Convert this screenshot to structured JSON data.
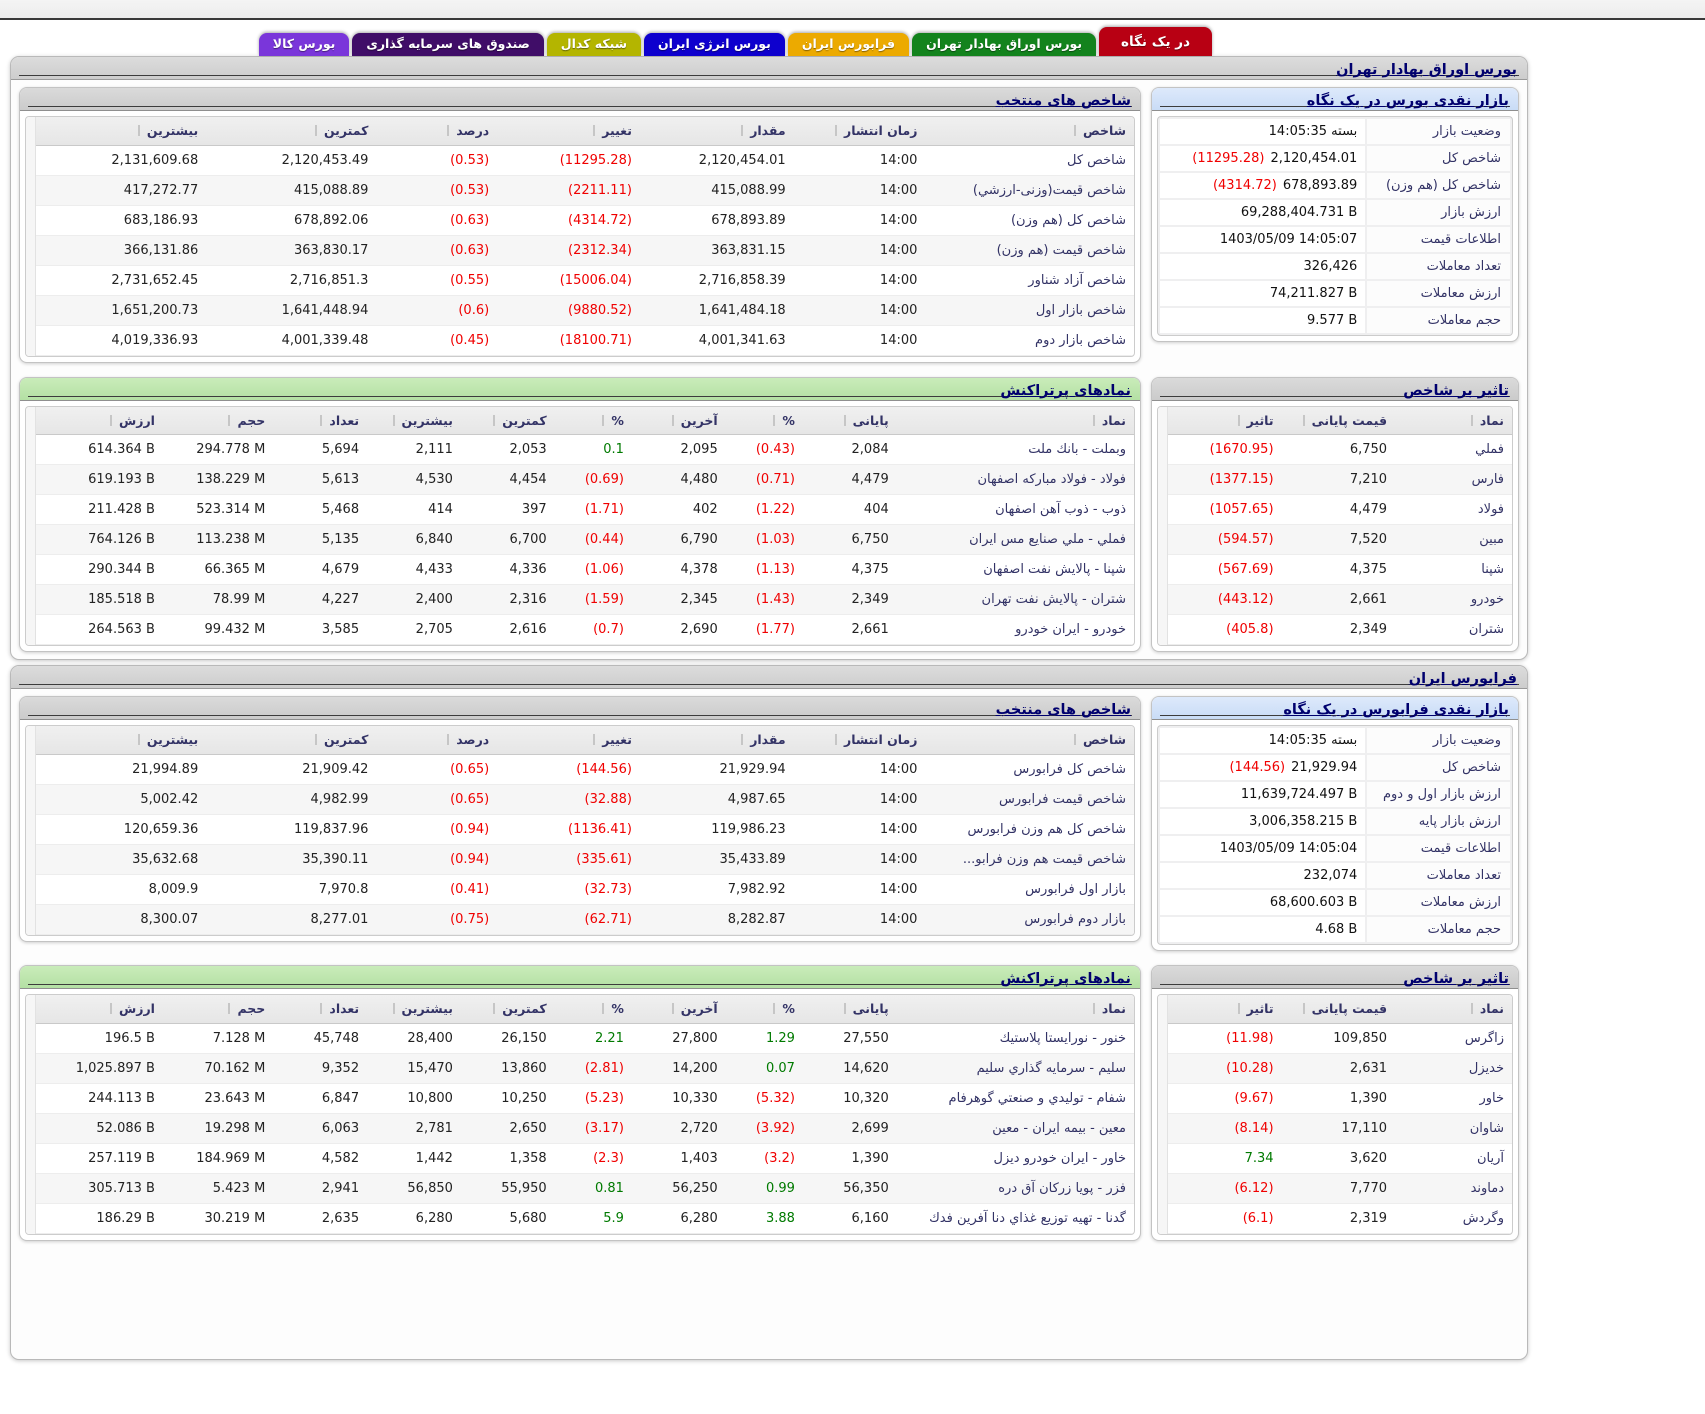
{
  "page": {
    "tabs": [
      {
        "label": "در یک نگاه",
        "slug": "at-a-glance",
        "color": "#b80013",
        "active": true
      },
      {
        "label": "بورس اوراق بهادار تهران",
        "slug": "tehran-stock-exchange",
        "color": "#13831d",
        "active": false
      },
      {
        "label": "فرابورس ایران",
        "slug": "iran-farabourse",
        "color": "#ecaa00",
        "active": false
      },
      {
        "label": "بورس انرژی ایران",
        "slug": "iran-energy-exchange",
        "color": "#0e00ce",
        "active": false
      },
      {
        "label": "شبکه کدال",
        "slug": "codal-network",
        "color": "#b4b500",
        "active": false
      },
      {
        "label": "صندوق های سرمایه گذاری",
        "slug": "investment-funds",
        "color": "#400d68",
        "active": false
      },
      {
        "label": "بورس کالا",
        "slug": "commodity-exchange",
        "color": "#7a36da",
        "active": false
      }
    ],
    "sections": [
      {
        "title": "بورس اوراق بهادار تهران",
        "summary": {
          "title": "بازار نقدی بورس در یک نگاه",
          "rows": [
            {
              "label": "وضعیت بازار",
              "value": "بسته 14:05:35"
            },
            {
              "label": "شاخص کل",
              "value": "2,120,454.01",
              "change": "(11295.28)"
            },
            {
              "label": "شاخص کل (هم وزن)",
              "value": "678,893.89",
              "change": "(4314.72)"
            },
            {
              "label": "ارزش بازار",
              "value": "69,288,404.731 B"
            },
            {
              "label": "اطلاعات قیمت",
              "value": "1403/05/09 14:05:07"
            },
            {
              "label": "تعداد معاملات",
              "value": "326,426"
            },
            {
              "label": "ارزش معاملات",
              "value": "74,211.827 B"
            },
            {
              "label": "حجم معاملات",
              "value": "9.577 B"
            }
          ]
        },
        "indices": {
          "title": "شاخص های منتخب",
          "headers": [
            "شاخص",
            "زمان انتشار",
            "مقدار",
            "تغییر",
            "درصد",
            "کمترین",
            "بیشترین"
          ],
          "rows": [
            [
              "شاخص کل",
              "14:00",
              "2,120,454.01",
              "(11295.28)",
              "(0.53)",
              "2,120,453.49",
              "2,131,609.68"
            ],
            [
              "شاخص قیمت(وزنی-ارزشي)",
              "14:00",
              "415,088.99",
              "(2211.11)",
              "(0.53)",
              "415,088.89",
              "417,272.77"
            ],
            [
              "شاخص کل (هم وزن)",
              "14:00",
              "678,893.89",
              "(4314.72)",
              "(0.63)",
              "678,892.06",
              "683,186.93"
            ],
            [
              "شاخص قیمت (هم وزن)",
              "14:00",
              "363,831.15",
              "(2312.34)",
              "(0.63)",
              "363,830.17",
              "366,131.86"
            ],
            [
              "شاخص آزاد شناور",
              "14:00",
              "2,716,858.39",
              "(15006.04)",
              "(0.55)",
              "2,716,851.3",
              "2,731,652.45"
            ],
            [
              "شاخص بازار اول",
              "14:00",
              "1,641,484.18",
              "(9880.52)",
              "(0.6)",
              "1,641,448.94",
              "1,651,200.73"
            ],
            [
              "شاخص بازار دوم",
              "14:00",
              "4,001,341.63",
              "(18100.71)",
              "(0.45)",
              "4,001,339.48",
              "4,019,336.93"
            ]
          ]
        },
        "impact": {
          "title": "تاثیر بر شاخص",
          "headers": [
            "نماد",
            "قیمت پایانی",
            "تاثیر"
          ],
          "rows": [
            [
              "فملي",
              "6,750",
              "(1670.95)"
            ],
            [
              "فارس",
              "7,210",
              "(1377.15)"
            ],
            [
              "فولاد",
              "4,479",
              "(1057.65)"
            ],
            [
              "مبین",
              "7,520",
              "(594.57)"
            ],
            [
              "شپنا",
              "4,375",
              "(567.69)"
            ],
            [
              "خودرو",
              "2,661",
              "(443.12)"
            ],
            [
              "شتران",
              "2,349",
              "(405.8)"
            ]
          ]
        },
        "trades": {
          "title": "نمادهای پرتراکنش",
          "headers": [
            "نماد",
            "پایانی",
            "%",
            "آخرین",
            "%",
            "کمترین",
            "بیشترین",
            "تعداد",
            "حجم",
            "ارزش"
          ],
          "rows": [
            [
              "وبملت - بانك ملت",
              "2,084",
              "(0.43)",
              "2,095",
              "0.1",
              "2,053",
              "2,111",
              "5,694",
              "294.778 M",
              "614.364 B"
            ],
            [
              "فولاد - فولاد مباركه اصفهان",
              "4,479",
              "(0.71)",
              "4,480",
              "(0.69)",
              "4,454",
              "4,530",
              "5,613",
              "138.229 M",
              "619.193 B"
            ],
            [
              "ذوب - ذوب آهن اصفهان",
              "404",
              "(1.22)",
              "402",
              "(1.71)",
              "397",
              "414",
              "5,468",
              "523.314 M",
              "211.428 B"
            ],
            [
              "فملي - ملي صنايع مس ايران",
              "6,750",
              "(1.03)",
              "6,790",
              "(0.44)",
              "6,700",
              "6,840",
              "5,135",
              "113.238 M",
              "764.126 B"
            ],
            [
              "شپنا - پالايش نفت اصفهان",
              "4,375",
              "(1.13)",
              "4,378",
              "(1.06)",
              "4,336",
              "4,433",
              "4,679",
              "66.365 M",
              "290.344 B"
            ],
            [
              "شتران - پالايش نفت تهران",
              "2,349",
              "(1.43)",
              "2,345",
              "(1.59)",
              "2,316",
              "2,400",
              "4,227",
              "78.99 M",
              "185.518 B"
            ],
            [
              "خودرو - ايران خودرو",
              "2,661",
              "(1.77)",
              "2,690",
              "(0.7)",
              "2,616",
              "2,705",
              "3,585",
              "99.432 M",
              "264.563 B"
            ]
          ]
        }
      },
      {
        "title": "فرابورس ایران",
        "summary": {
          "title": "بازار نقدی فرابورس در یک نگاه",
          "rows": [
            {
              "label": "وضعیت بازار",
              "value": "بسته 14:05:35"
            },
            {
              "label": "شاخص کل",
              "value": "21,929.94",
              "change": "(144.56)"
            },
            {
              "label": "ارزش بازار اول و دوم",
              "value": "11,639,724.497 B"
            },
            {
              "label": "ارزش بازار پایه",
              "value": "3,006,358.215 B"
            },
            {
              "label": "اطلاعات قیمت",
              "value": "1403/05/09 14:05:04"
            },
            {
              "label": "تعداد معاملات",
              "value": "232,074"
            },
            {
              "label": "ارزش معاملات",
              "value": "68,600.603 B"
            },
            {
              "label": "حجم معاملات",
              "value": "4.68 B"
            }
          ]
        },
        "indices": {
          "title": "شاخص های منتخب",
          "headers": [
            "شاخص",
            "زمان انتشار",
            "مقدار",
            "تغییر",
            "درصد",
            "کمترین",
            "بیشترین"
          ],
          "rows": [
            [
              "شاخص کل فرابورس",
              "14:00",
              "21,929.94",
              "(144.56)",
              "(0.65)",
              "21,909.42",
              "21,994.89"
            ],
            [
              "شاخص قیمت فرابورس",
              "14:00",
              "4,987.65",
              "(32.88)",
              "(0.65)",
              "4,982.99",
              "5,002.42"
            ],
            [
              "شاخص کل هم وزن فرابورس",
              "14:00",
              "119,986.23",
              "(1136.41)",
              "(0.94)",
              "119,837.96",
              "120,659.36"
            ],
            [
              "شاخص قیمت هم وزن فرابو...",
              "14:00",
              "35,433.89",
              "(335.61)",
              "(0.94)",
              "35,390.11",
              "35,632.68"
            ],
            [
              "بازار اول فرابورس",
              "14:00",
              "7,982.92",
              "(32.73)",
              "(0.41)",
              "7,970.8",
              "8,009.9"
            ],
            [
              "بازار دوم فرابورس",
              "14:00",
              "8,282.87",
              "(62.71)",
              "(0.75)",
              "8,277.01",
              "8,300.07"
            ]
          ]
        },
        "impact": {
          "title": "تاثیر بر شاخص",
          "headers": [
            "نماد",
            "قیمت پایانی",
            "تاثیر"
          ],
          "rows": [
            [
              "زاگرس",
              "109,850",
              "(11.98)"
            ],
            [
              "خدیزل",
              "2,631",
              "(10.28)"
            ],
            [
              "خاور",
              "1,390",
              "(9.67)"
            ],
            [
              "شاوان",
              "17,110",
              "(8.14)"
            ],
            [
              "آریان",
              "3,620",
              "7.34"
            ],
            [
              "دماوند",
              "7,770",
              "(6.12)"
            ],
            [
              "وگردش",
              "2,319",
              "(6.1)"
            ]
          ]
        },
        "trades": {
          "title": "نمادهای پرتراکنش",
          "headers": [
            "نماد",
            "پایانی",
            "%",
            "آخرین",
            "%",
            "کمترین",
            "بیشترین",
            "تعداد",
            "حجم",
            "ارزش"
          ],
          "rows": [
            [
              "خنور - نورایستا پلاستیك",
              "27,550",
              "1.29",
              "27,800",
              "2.21",
              "26,150",
              "28,400",
              "45,748",
              "7.128 M",
              "196.5 B"
            ],
            [
              "سلیم - سرمایه گذاري سلیم",
              "14,620",
              "0.07",
              "14,200",
              "(2.81)",
              "13,860",
              "15,470",
              "9,352",
              "70.162 M",
              "1,025.897 B"
            ],
            [
              "شفام - تولیدي و صنعتي گوهرفام",
              "10,320",
              "(5.32)",
              "10,330",
              "(5.23)",
              "10,250",
              "10,800",
              "6,847",
              "23.643 M",
              "244.113 B"
            ],
            [
              "معین - بیمه ایران - معین",
              "2,699",
              "(3.92)",
              "2,720",
              "(3.17)",
              "2,650",
              "2,781",
              "6,063",
              "19.298 M",
              "52.086 B"
            ],
            [
              "خاور - ایران خودرو دیزل",
              "1,390",
              "(3.2)",
              "1,403",
              "(2.3)",
              "1,358",
              "1,442",
              "4,582",
              "184.969 M",
              "257.119 B"
            ],
            [
              "فزر - پویا زرکان آق دره",
              "56,350",
              "0.99",
              "56,250",
              "0.81",
              "55,950",
              "56,850",
              "2,941",
              "5.423 M",
              "305.713 B"
            ],
            [
              "گدنا - تهیه توزیع غذاي دنا آفرین فدك",
              "6,160",
              "3.88",
              "6,280",
              "5.9",
              "5,680",
              "6,280",
              "2,635",
              "30.219 M",
              "186.29 B"
            ]
          ]
        }
      }
    ]
  }
}
